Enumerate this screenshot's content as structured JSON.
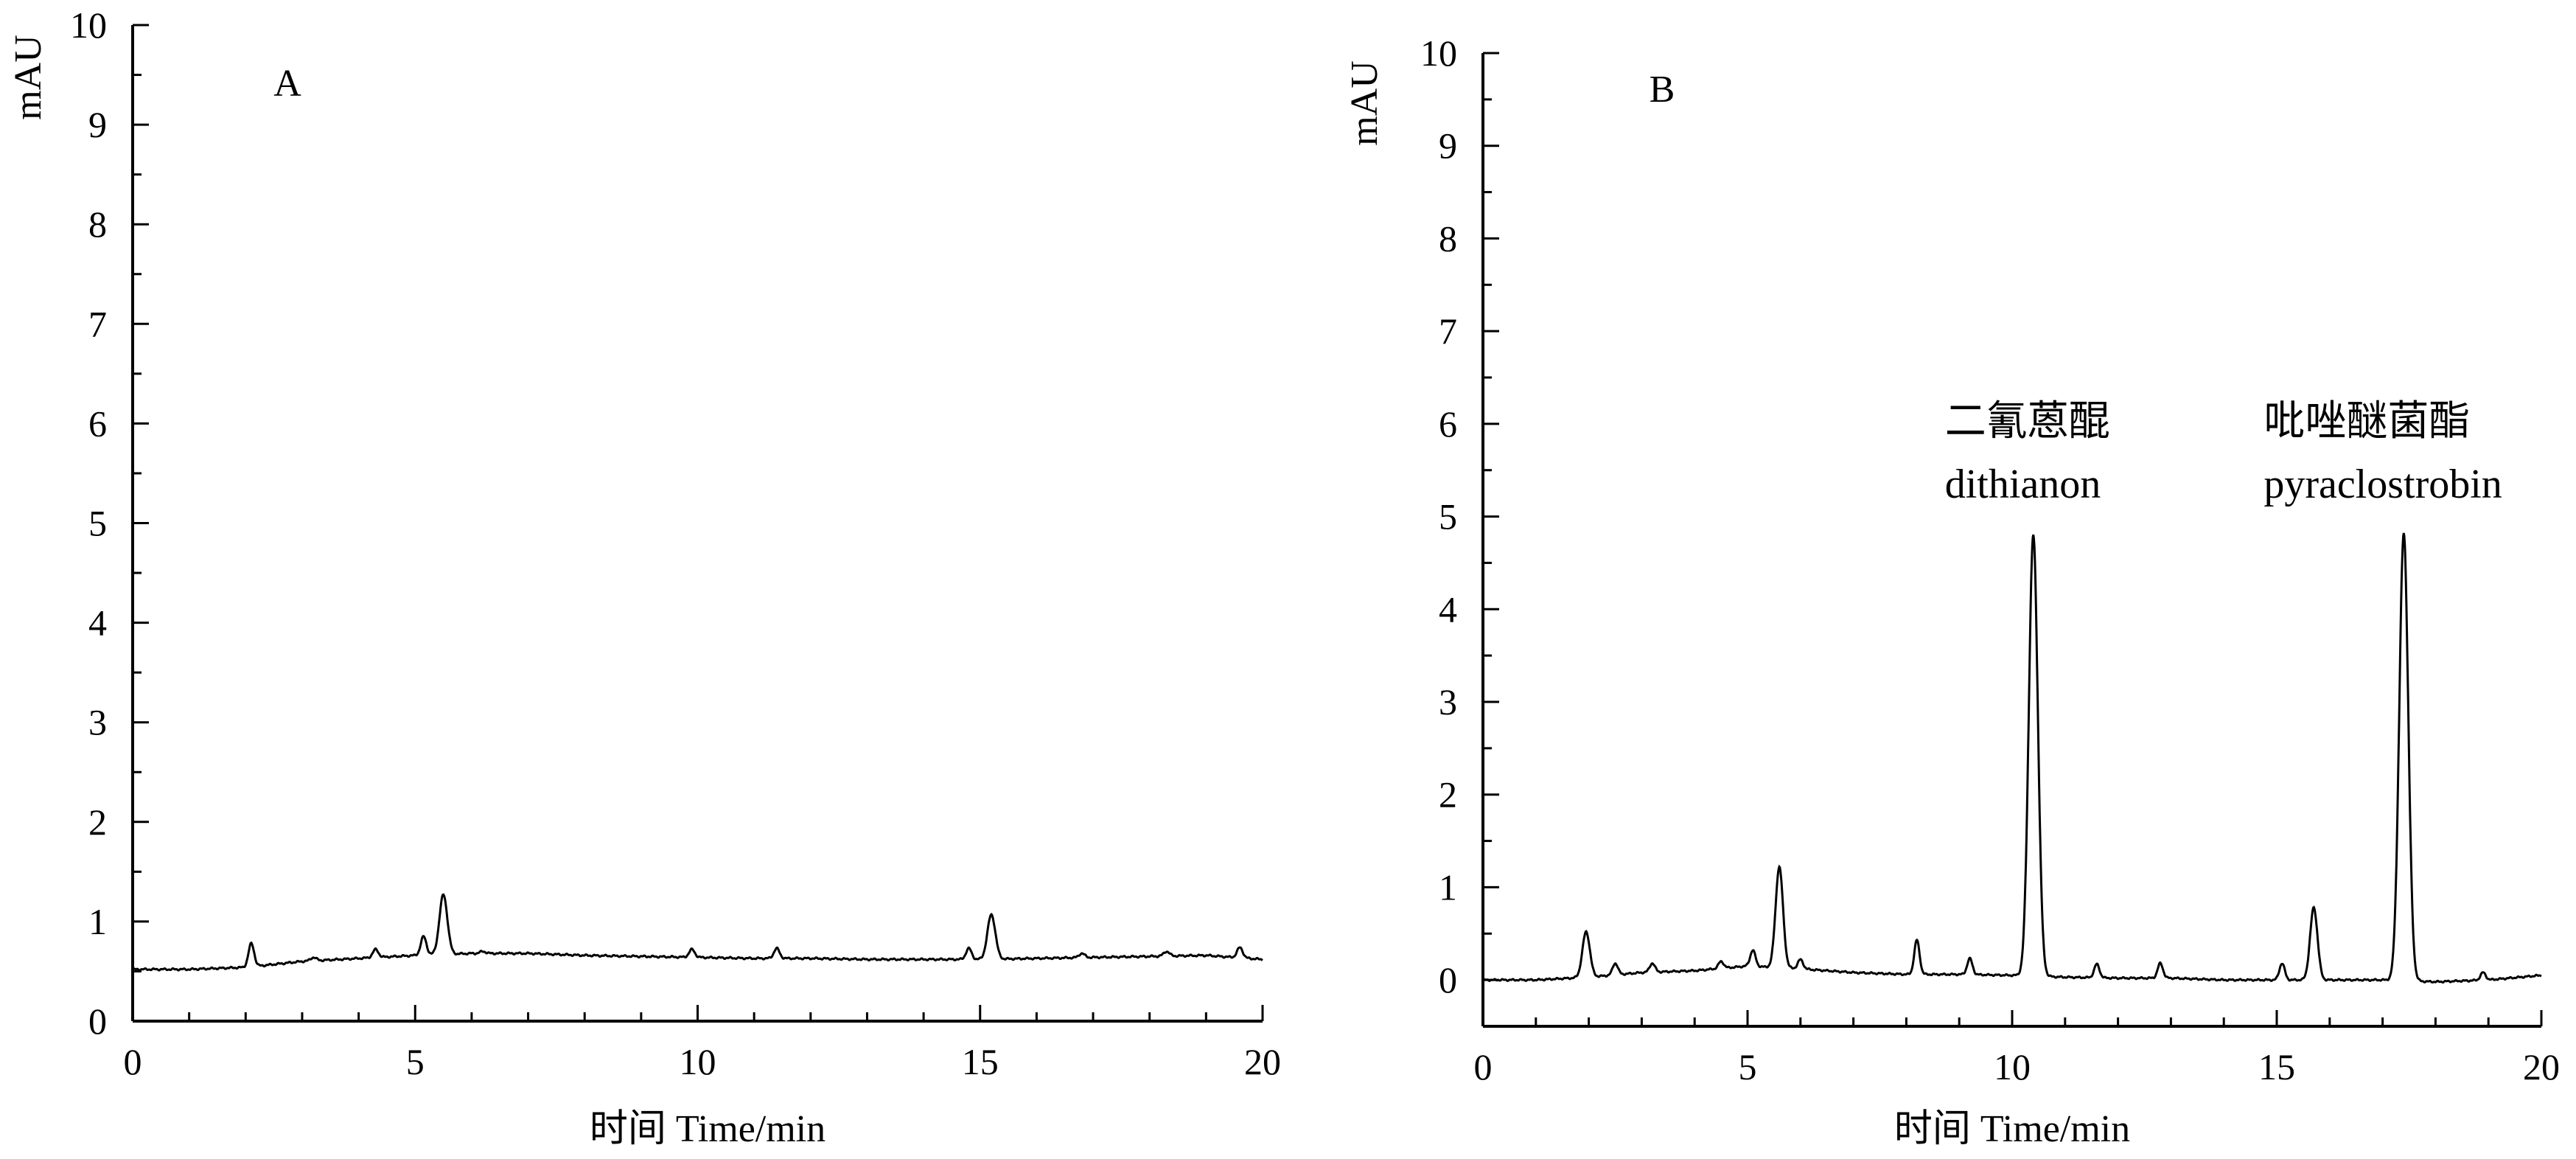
{
  "chart_data": [
    {
      "type": "line",
      "panel_label": "A",
      "xlabel": "时间  Time/min",
      "ylabel": "mAU",
      "xlim": [
        0,
        20
      ],
      "ylim": [
        0,
        10
      ],
      "x_ticks": [
        "0",
        "5",
        "10",
        "15",
        "20"
      ],
      "y_ticks": [
        "0",
        "1",
        "2",
        "3",
        "4",
        "5",
        "6",
        "7",
        "8",
        "9",
        "10"
      ],
      "baseline": {
        "x": [
          0,
          1.0,
          2.0,
          3.0,
          4.0,
          5.0,
          6.0,
          7.0,
          8.0,
          9.0,
          10.0,
          11.0,
          12.0,
          13.0,
          14.0,
          15.0,
          16.0,
          17.0,
          18.0,
          19.0,
          20.0
        ],
        "y": [
          0.52,
          0.52,
          0.54,
          0.6,
          0.63,
          0.66,
          0.68,
          0.68,
          0.66,
          0.65,
          0.64,
          0.63,
          0.63,
          0.62,
          0.62,
          0.62,
          0.63,
          0.64,
          0.65,
          0.66,
          0.62
        ]
      },
      "peaks": [
        {
          "t": 2.1,
          "h": 0.78
        },
        {
          "t": 3.2,
          "h": 0.64
        },
        {
          "t": 4.3,
          "h": 0.72
        },
        {
          "t": 5.15,
          "h": 0.85
        },
        {
          "t": 5.5,
          "h": 1.27
        },
        {
          "t": 6.2,
          "h": 0.7
        },
        {
          "t": 9.9,
          "h": 0.72
        },
        {
          "t": 11.4,
          "h": 0.73
        },
        {
          "t": 14.8,
          "h": 0.73
        },
        {
          "t": 15.2,
          "h": 1.07
        },
        {
          "t": 16.8,
          "h": 0.68
        },
        {
          "t": 18.3,
          "h": 0.7
        },
        {
          "t": 19.6,
          "h": 0.74
        }
      ],
      "annotations": []
    },
    {
      "type": "line",
      "panel_label": "B",
      "xlabel": "时间  Time/min",
      "ylabel": "mAU",
      "xlim": [
        0,
        20
      ],
      "ylim": [
        -0.5,
        10
      ],
      "x_ticks": [
        "0",
        "5",
        "10",
        "15",
        "20"
      ],
      "y_ticks": [
        "0",
        "1",
        "2",
        "3",
        "4",
        "5",
        "6",
        "7",
        "8",
        "9",
        "10"
      ],
      "baseline": {
        "x": [
          0,
          1.0,
          2.0,
          3.0,
          4.0,
          5.0,
          6.0,
          7.0,
          8.0,
          9.0,
          10.0,
          11.0,
          12.0,
          13.0,
          14.0,
          15.0,
          16.0,
          17.0,
          18.0,
          19.0,
          20.0
        ],
        "y": [
          0.0,
          0.0,
          0.03,
          0.08,
          0.1,
          0.15,
          0.12,
          0.08,
          0.06,
          0.06,
          0.05,
          0.03,
          0.02,
          0.02,
          0.0,
          0.0,
          0.0,
          0.0,
          -0.02,
          0.0,
          0.05
        ]
      },
      "peaks": [
        {
          "t": 1.95,
          "h": 0.52
        },
        {
          "t": 2.5,
          "h": 0.18
        },
        {
          "t": 3.2,
          "h": 0.18
        },
        {
          "t": 4.5,
          "h": 0.2
        },
        {
          "t": 5.1,
          "h": 0.32
        },
        {
          "t": 5.6,
          "h": 1.22
        },
        {
          "t": 6.0,
          "h": 0.22
        },
        {
          "t": 8.2,
          "h": 0.43
        },
        {
          "t": 9.2,
          "h": 0.23
        },
        {
          "t": 10.4,
          "h": 4.8
        },
        {
          "t": 11.6,
          "h": 0.17
        },
        {
          "t": 12.8,
          "h": 0.18
        },
        {
          "t": 15.1,
          "h": 0.18
        },
        {
          "t": 15.7,
          "h": 0.78
        },
        {
          "t": 17.4,
          "h": 4.82
        },
        {
          "t": 18.9,
          "h": 0.08
        }
      ],
      "annotations": [
        {
          "line1": "二氰蒽醌",
          "line2": "dithianon",
          "peak_time": 10.4
        },
        {
          "line1": "吡唑醚菌酯",
          "line2": "pyraclostrobin",
          "peak_time": 17.4
        }
      ]
    }
  ]
}
